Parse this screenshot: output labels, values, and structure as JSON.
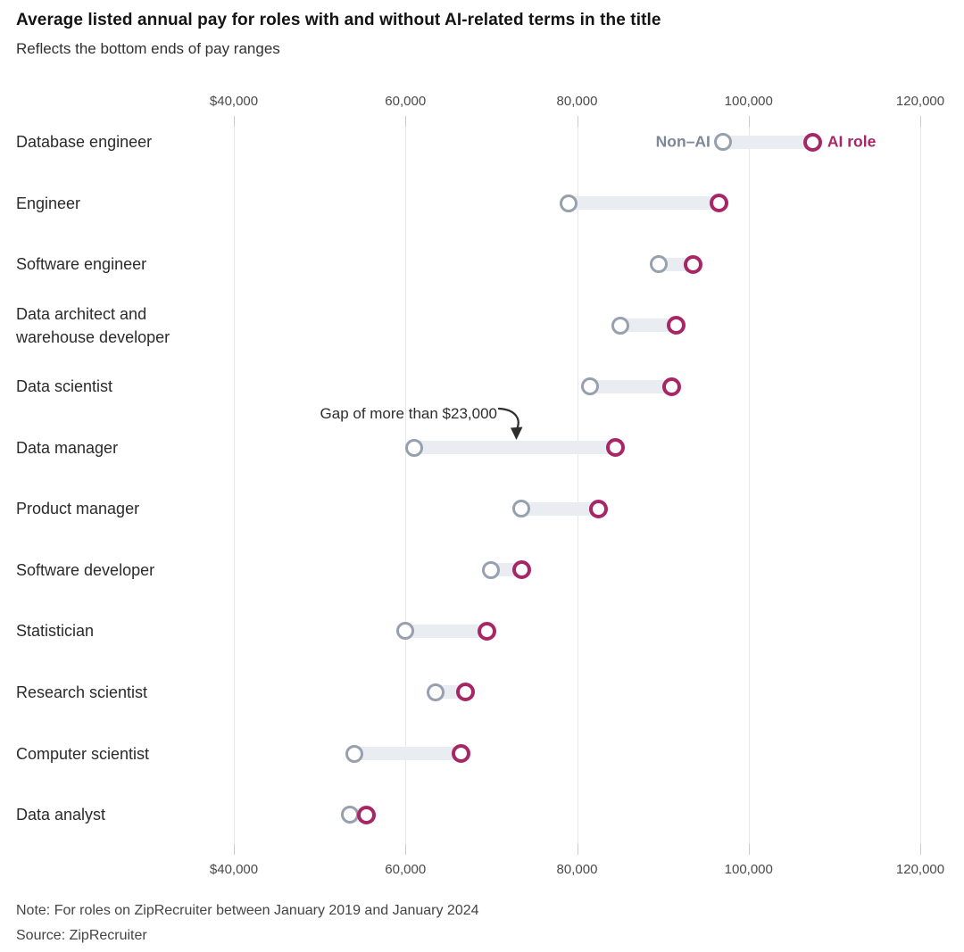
{
  "header": {
    "title": "Average listed annual pay for roles with and without AI-related terms in the title",
    "subtitle": "Reflects the bottom ends of pay ranges"
  },
  "legend": {
    "non_ai_label": "Non–AI",
    "ai_label": "AI role"
  },
  "annotation": {
    "text": "Gap of more than $23,000",
    "target_category": "Data manager"
  },
  "footer": {
    "note": "Note: For roles on ZipRecruiter between January 2019 and January 2024",
    "source": "Source: ZipRecruiter"
  },
  "colors": {
    "ai_accent": "#a72766",
    "non_ai_accent": "#97a0ae",
    "connector_bar": "#e9edf2",
    "non_ai_legend_text": "#7d8798"
  },
  "chart_data": {
    "type": "scatter",
    "subtype": "dumbbell",
    "title": "Average listed annual pay for roles with and without AI-related terms in the title",
    "subtitle": "Reflects the bottom ends of pay ranges",
    "categories": [
      "Database engineer",
      "Engineer",
      "Software engineer",
      "Data architect and warehouse developer",
      "Data scientist",
      "Data manager",
      "Product manager",
      "Software developer",
      "Statistician",
      "Research scientist",
      "Computer scientist",
      "Data analyst"
    ],
    "series": [
      {
        "name": "Non–AI",
        "values": [
          97000,
          79000,
          89500,
          85000,
          81500,
          61000,
          73500,
          70000,
          60000,
          63500,
          54000,
          53500
        ]
      },
      {
        "name": "AI role",
        "values": [
          107500,
          96500,
          93500,
          91500,
          91000,
          84500,
          82500,
          73500,
          69500,
          67000,
          66500,
          55500
        ]
      }
    ],
    "x_axis": {
      "tick_labels": [
        "$40,000",
        "60,000",
        "80,000",
        "100,000",
        "120,000"
      ],
      "tick_values": [
        40000,
        60000,
        80000,
        100000,
        120000
      ],
      "min": 40000,
      "max": 120000,
      "grid": true,
      "label_position": "top and bottom"
    },
    "legend_position": "inline first row",
    "annotations": [
      {
        "text": "Gap of more than $23,000",
        "category": "Data manager",
        "gap_value": 23500
      }
    ]
  }
}
